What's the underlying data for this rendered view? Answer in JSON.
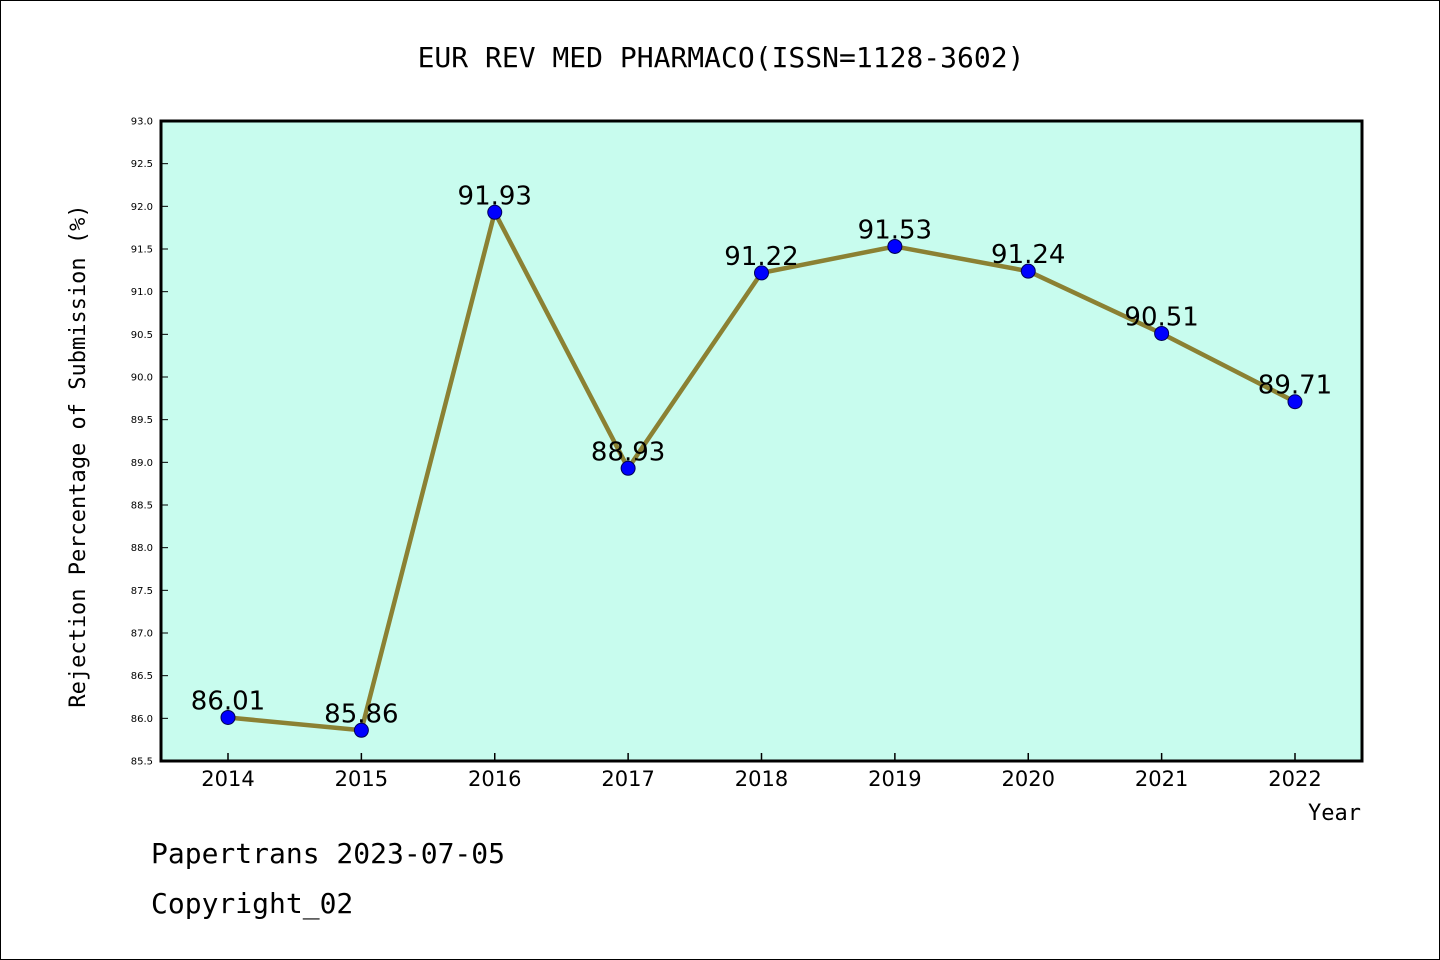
{
  "chart_data": {
    "type": "line",
    "title": "EUR REV MED PHARMACO(ISSN=1128-3602)",
    "xlabel": "Year",
    "ylabel": "Rejection Percentage of Submission (%)",
    "categories": [
      "2014",
      "2015",
      "2016",
      "2017",
      "2018",
      "2019",
      "2020",
      "2021",
      "2022"
    ],
    "series": [
      {
        "values": [
          86.01,
          85.86,
          91.93,
          88.93,
          91.22,
          91.53,
          91.24,
          90.51,
          89.71
        ],
        "labels": [
          "86.01",
          "85.86",
          "91.93",
          "88.93",
          "91.22",
          "91.53",
          "91.24",
          "90.51",
          "89.71"
        ]
      }
    ],
    "ylim": [
      85.5,
      93.0
    ],
    "yticks": [
      "85.5",
      "86.0",
      "86.5",
      "87.0",
      "87.5",
      "88.0",
      "88.5",
      "89.0",
      "89.5",
      "90.0",
      "90.5",
      "91.0",
      "91.5",
      "92.0",
      "92.5",
      "93.0"
    ],
    "grid": false,
    "legend": "none",
    "colors": {
      "plot_background": "#c8fcee",
      "line": "#8b8133",
      "marker": "#0000ff",
      "axis": "#000000"
    }
  },
  "footer": {
    "date_line": "Papertrans 2023-07-05",
    "copyright_line": "Copyright_02"
  }
}
